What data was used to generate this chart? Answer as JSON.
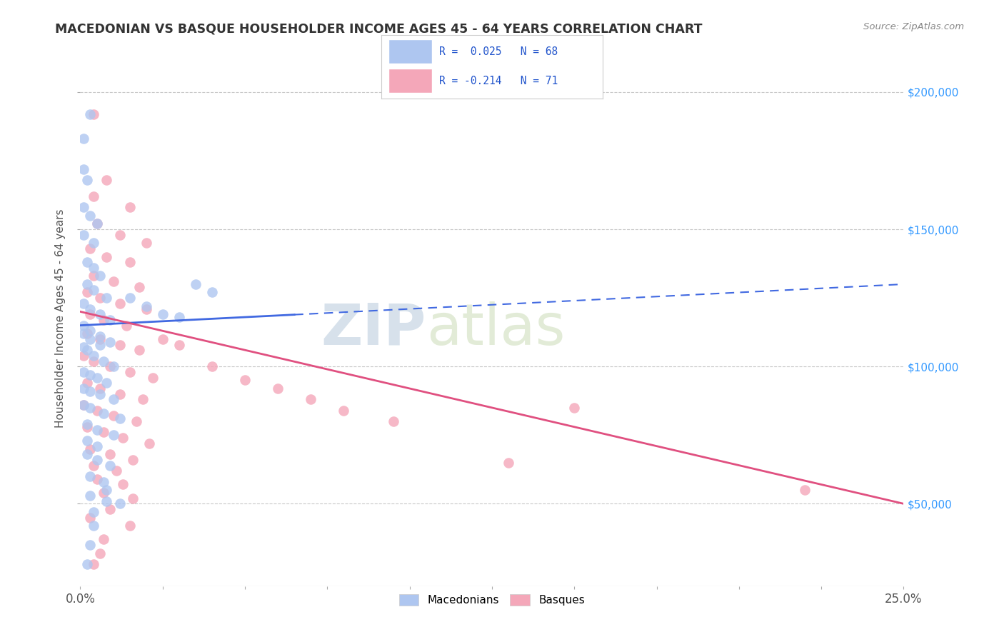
{
  "title": "MACEDONIAN VS BASQUE HOUSEHOLDER INCOME AGES 45 - 64 YEARS CORRELATION CHART",
  "source": "Source: ZipAtlas.com",
  "ylabel": "Householder Income Ages 45 - 64 years",
  "xlim": [
    0.0,
    0.25
  ],
  "ylim": [
    20000,
    215000
  ],
  "yticks": [
    50000,
    100000,
    150000,
    200000
  ],
  "ytick_labels": [
    "$50,000",
    "$100,000",
    "$150,000",
    "$200,000"
  ],
  "xticks": [
    0.0,
    0.025,
    0.05,
    0.075,
    0.1,
    0.125,
    0.15,
    0.175,
    0.2,
    0.225,
    0.25
  ],
  "xtick_labels_visible": [
    "0.0%",
    "",
    "",
    "",
    "",
    "",
    "",
    "",
    "",
    "",
    "25.0%"
  ],
  "legend_r1": "R =  0.025",
  "legend_n1": "N = 68",
  "legend_r2": "R = -0.214",
  "legend_n2": "N = 71",
  "mac_color": "#aec6f0",
  "basque_color": "#f4a7b9",
  "mac_line_color": "#4169e1",
  "basque_line_color": "#e05080",
  "mac_line": {
    "x0": 0.0,
    "y0": 115000,
    "x1": 0.25,
    "y1": 130000
  },
  "mac_line_solid_end": 0.065,
  "bas_line": {
    "x0": 0.0,
    "y0": 120000,
    "x1": 0.25,
    "y1": 50000
  },
  "background_color": "#ffffff",
  "grid_color": "#c8c8c8",
  "watermark_zip": "ZIP",
  "watermark_atlas": "atlas"
}
